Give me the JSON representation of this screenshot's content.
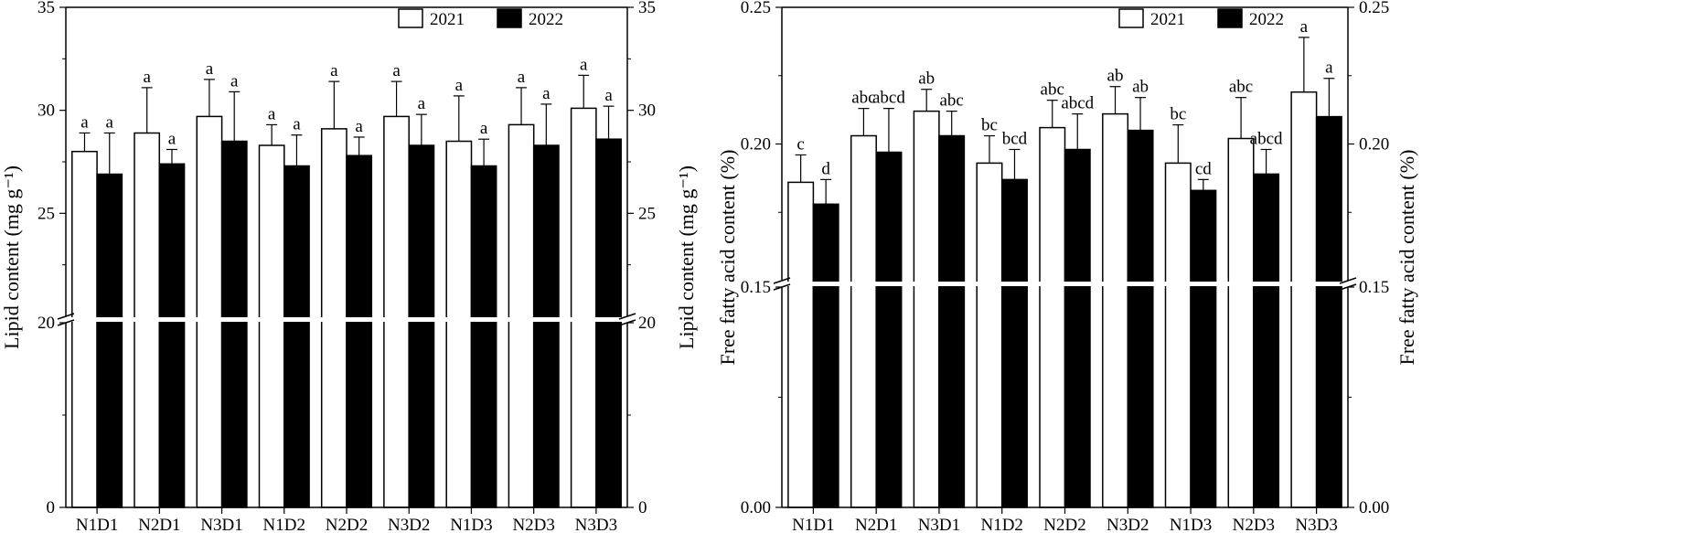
{
  "legend": {
    "series": [
      "2021",
      "2022"
    ]
  },
  "chart_data": [
    {
      "type": "bar",
      "ylabel": "Lipid content (mg g⁻¹)",
      "ylabel_right": "Lipid content (mg g⁻¹)",
      "y_axis_break": [
        0,
        20
      ],
      "ylim_lower": [
        0,
        20
      ],
      "ylim_upper": [
        20,
        35
      ],
      "yticks": [
        0,
        20,
        25,
        30,
        35
      ],
      "legend_position": "top-right",
      "categories": [
        "N1D1",
        "N2D1",
        "N3D1",
        "N1D2",
        "N2D2",
        "N3D2",
        "N1D3",
        "N2D3",
        "N3D3"
      ],
      "series": [
        {
          "name": "2021",
          "fill": "#ffffff",
          "values": [
            28.0,
            28.9,
            29.7,
            28.3,
            29.1,
            29.7,
            28.5,
            29.3,
            30.1
          ],
          "errors": [
            0.9,
            2.2,
            1.8,
            1.0,
            2.3,
            1.7,
            2.2,
            1.8,
            1.6
          ],
          "letters": [
            "a",
            "a",
            "a",
            "a",
            "a",
            "a",
            "a",
            "a",
            "a"
          ]
        },
        {
          "name": "2022",
          "fill": "#000000",
          "values": [
            26.9,
            27.4,
            28.5,
            27.3,
            27.8,
            28.3,
            27.3,
            28.3,
            28.6
          ],
          "errors": [
            2.0,
            0.7,
            2.4,
            1.5,
            0.9,
            1.5,
            1.3,
            2.0,
            1.6
          ],
          "letters": [
            "a",
            "a",
            "a",
            "a",
            "a",
            "a",
            "a",
            "a",
            "a"
          ]
        }
      ]
    },
    {
      "type": "bar",
      "ylabel": "Free fatty acid content (%)",
      "ylabel_right": "Free fatty acid content (%)",
      "y_axis_break": [
        0,
        0.15
      ],
      "ylim_lower": [
        0,
        0.15
      ],
      "ylim_upper": [
        0.15,
        0.25
      ],
      "yticks": [
        0.0,
        0.15,
        0.2,
        0.25
      ],
      "ytick_labels": [
        "0.00",
        "0.15",
        "0.20",
        "0.25"
      ],
      "legend_position": "top-right",
      "categories": [
        "N1D1",
        "N2D1",
        "N3D1",
        "N1D2",
        "N2D2",
        "N3D2",
        "N1D3",
        "N2D3",
        "N3D3"
      ],
      "series": [
        {
          "name": "2021",
          "fill": "#ffffff",
          "values": [
            0.186,
            0.203,
            0.212,
            0.193,
            0.206,
            0.211,
            0.193,
            0.202,
            0.219
          ],
          "errors": [
            0.01,
            0.01,
            0.008,
            0.01,
            0.01,
            0.01,
            0.014,
            0.015,
            0.02
          ],
          "letters": [
            "c",
            "abc",
            "ab",
            "bc",
            "abc",
            "ab",
            "bc",
            "abc",
            "a"
          ]
        },
        {
          "name": "2022",
          "fill": "#000000",
          "values": [
            0.178,
            0.197,
            0.203,
            0.187,
            0.198,
            0.205,
            0.183,
            0.189,
            0.21
          ],
          "errors": [
            0.009,
            0.016,
            0.009,
            0.011,
            0.013,
            0.012,
            0.004,
            0.009,
            0.014
          ],
          "letters": [
            "d",
            "abcd",
            "abc",
            "bcd",
            "abcd",
            "ab",
            "cd",
            "abcd",
            "a"
          ]
        }
      ]
    }
  ]
}
